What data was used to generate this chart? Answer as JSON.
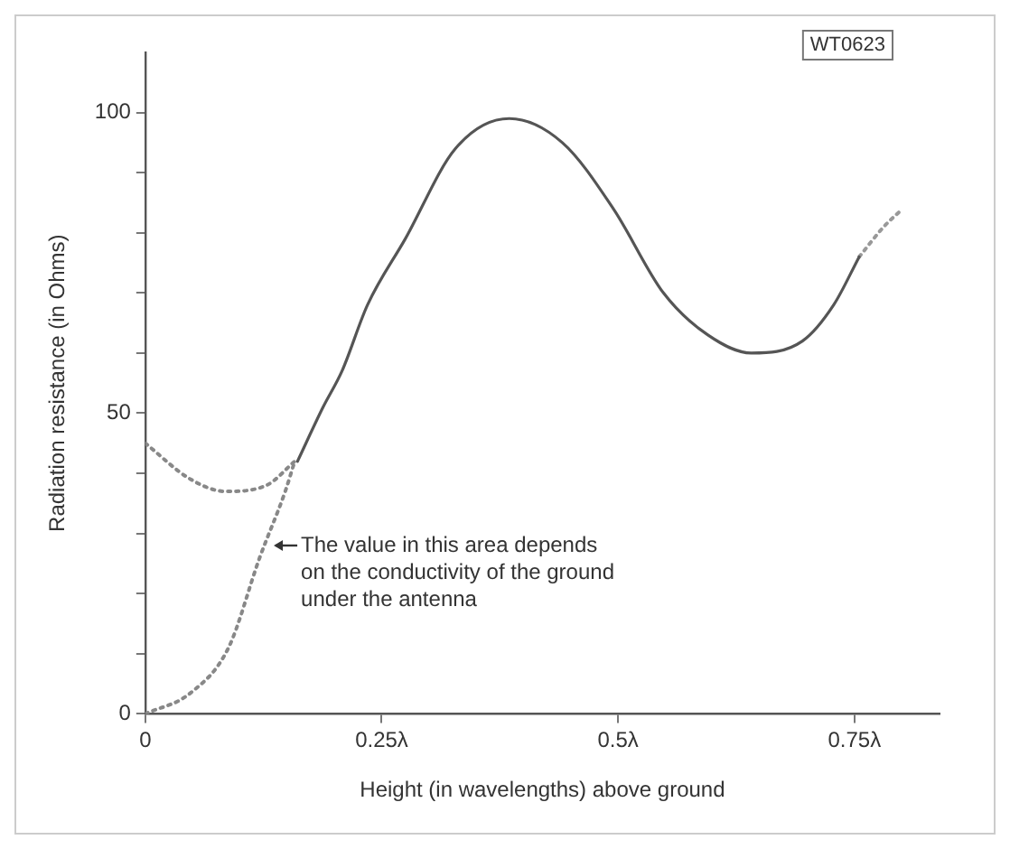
{
  "chart_data": {
    "type": "line",
    "xlabel": "Height (in wavelengths) above ground",
    "ylabel": "Radiation resistance (in Ohms)",
    "xlim": [
      0,
      0.84
    ],
    "ylim": [
      0,
      110
    ],
    "xticks": [
      0,
      {
        "value": 0.25,
        "label": "0.25λ"
      },
      {
        "value": 0.5,
        "label": "0.5λ"
      },
      {
        "value": 0.75,
        "label": "0.75λ"
      }
    ],
    "yticks": [
      0,
      {
        "value": 10,
        "label": null
      },
      {
        "value": 20,
        "label": null
      },
      {
        "value": 30,
        "label": null
      },
      {
        "value": 40,
        "label": null
      },
      50,
      {
        "value": 60,
        "label": null
      },
      {
        "value": 70,
        "label": null
      },
      {
        "value": 80,
        "label": null
      },
      {
        "value": 90,
        "label": null
      },
      100
    ],
    "grid": false,
    "legend": false,
    "marker": "none",
    "series": [
      {
        "color": "#555555",
        "line_style": "solid",
        "x": [
          0.161,
          0.188,
          0.208,
          0.235,
          0.275,
          0.328,
          0.385,
          0.441,
          0.495,
          0.548,
          0.595,
          0.641,
          0.695,
          0.728,
          0.755
        ],
        "values": [
          42,
          51,
          57,
          68,
          79,
          94,
          99,
          95,
          84,
          70,
          63,
          60,
          62,
          68,
          76
        ]
      },
      {
        "color": "#999999",
        "line_style": "dotted",
        "x": [
          0.755,
          0.781,
          0.801
        ],
        "values": [
          76,
          81,
          84
        ]
      },
      {
        "color": "#888888",
        "line_style": "dotted",
        "x": [
          0,
          0.048,
          0.085,
          0.128,
          0.158
        ],
        "values": [
          45,
          39,
          37,
          38,
          42
        ]
      },
      {
        "color": "#888888",
        "line_style": "dotted",
        "x": [
          0,
          0.048,
          0.088,
          0.121,
          0.148,
          0.158
        ],
        "values": [
          0,
          3.5,
          11,
          26,
          37,
          42
        ]
      }
    ],
    "annotations": [
      {
        "text": "The value in this area depends on the conductivity of the ground under the antenna",
        "x": 0.134,
        "y": 28
      },
      "WT0623"
    ]
  }
}
